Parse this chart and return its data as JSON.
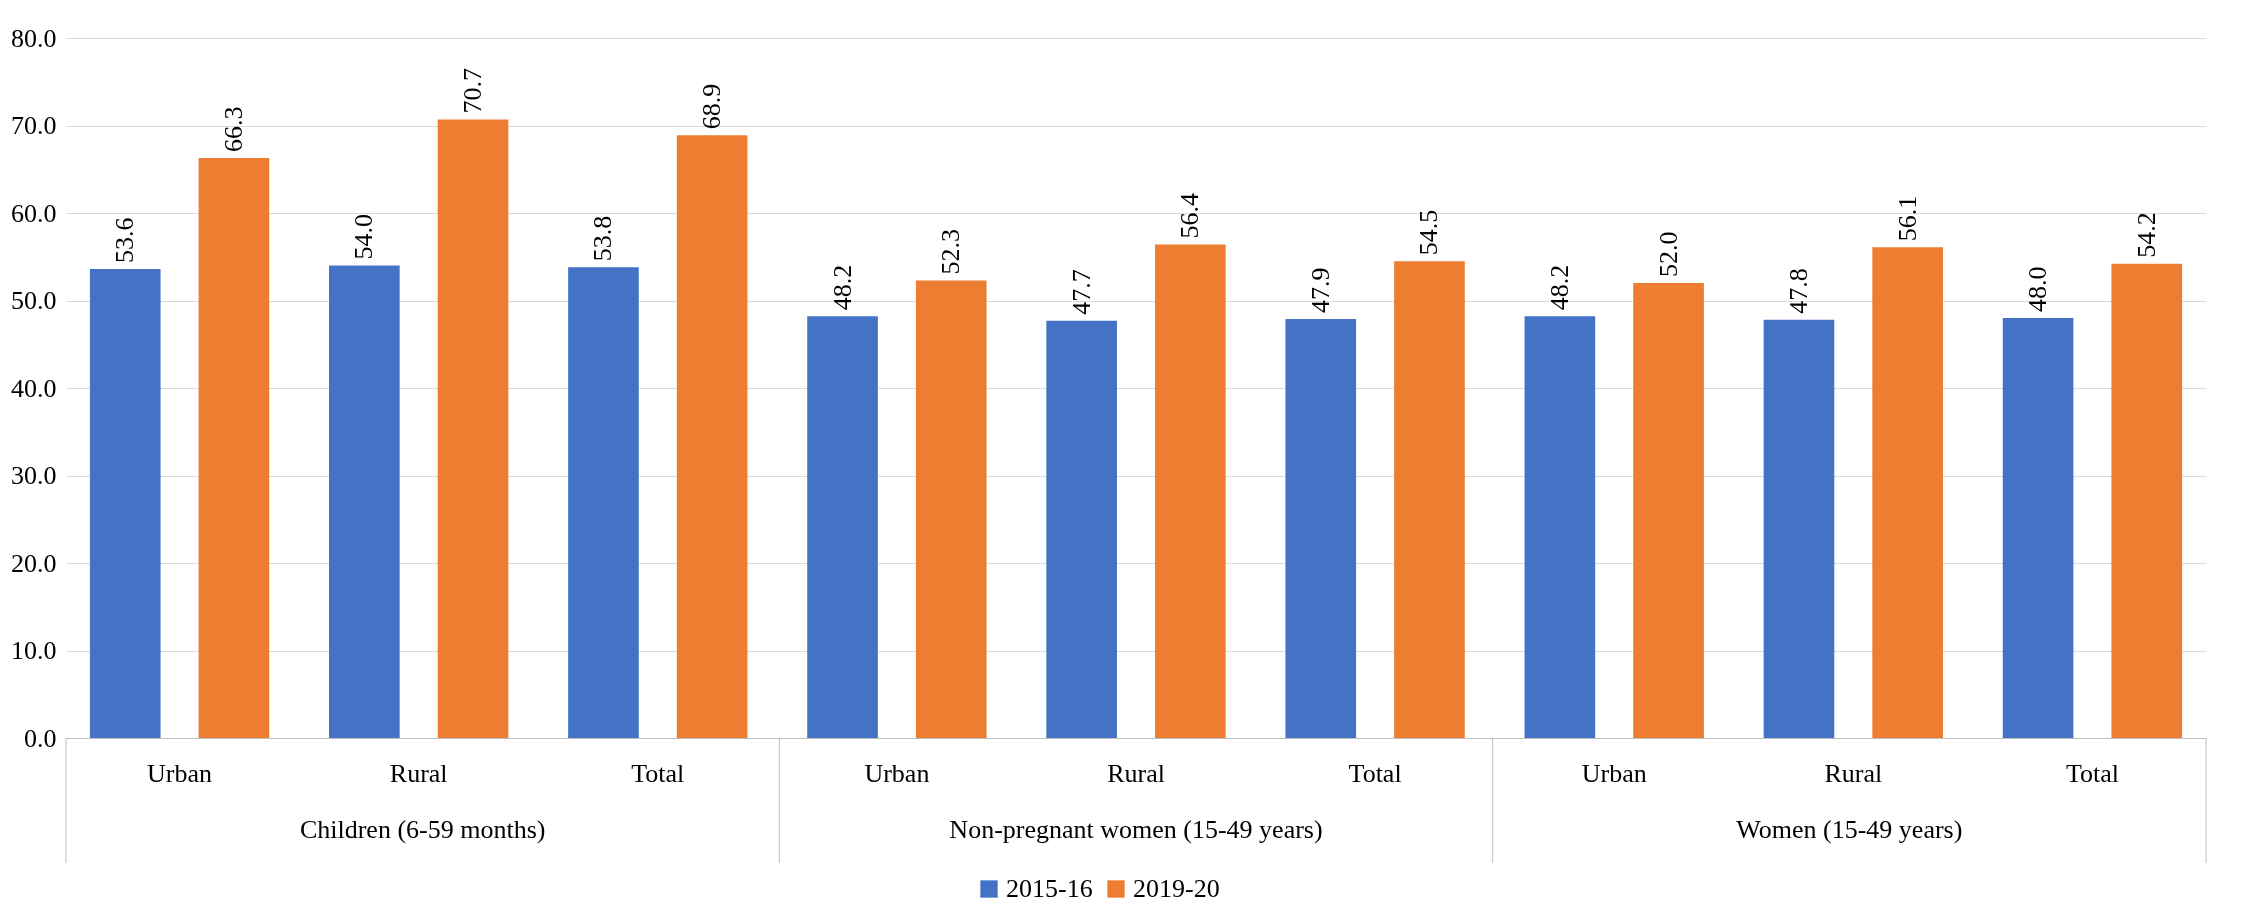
{
  "chart_data": {
    "type": "bar",
    "categories": [
      "Urban",
      "Rural",
      "Total",
      "Urban",
      "Rural",
      "Total",
      "Urban",
      "Rural",
      "Total"
    ],
    "series": [
      {
        "name": "2015-16",
        "color": "#4472c4",
        "values": [
          53.6,
          54.0,
          53.8,
          48.2,
          47.7,
          47.9,
          48.2,
          47.8,
          48.0
        ],
        "value_labels": [
          "53.6",
          "54.0",
          "53.8",
          "48.2",
          "47.7",
          "47.9",
          "48.2",
          "47.8",
          "48.0"
        ]
      },
      {
        "name": "2019-20",
        "color": "#ed7d31",
        "values": [
          66.3,
          70.7,
          68.9,
          52.3,
          56.4,
          54.5,
          52.0,
          56.1,
          54.2
        ],
        "value_labels": [
          "66.3",
          "70.7",
          "68.9",
          "52.3",
          "56.4",
          "54.5",
          "52.0",
          "56.1",
          "54.2"
        ]
      }
    ],
    "annotations": [
      "Children (6-59 months)",
      "Non-pregnant women (15-49 years)",
      "Women (15-49 years)"
    ],
    "ylim": [
      0,
      80
    ],
    "yticks": [
      {
        "value": 0,
        "label": "0.0"
      },
      {
        "value": 10,
        "label": "10.0"
      },
      {
        "value": 20,
        "label": "20.0"
      },
      {
        "value": 30,
        "label": "30.0"
      },
      {
        "value": 40,
        "label": "40.0"
      },
      {
        "value": 50,
        "label": "50.0"
      },
      {
        "value": 60,
        "label": "60.0"
      },
      {
        "value": 70,
        "label": "70.0"
      },
      {
        "value": 80,
        "label": "80.0"
      }
    ],
    "grid": "y",
    "legend": "bottom"
  }
}
